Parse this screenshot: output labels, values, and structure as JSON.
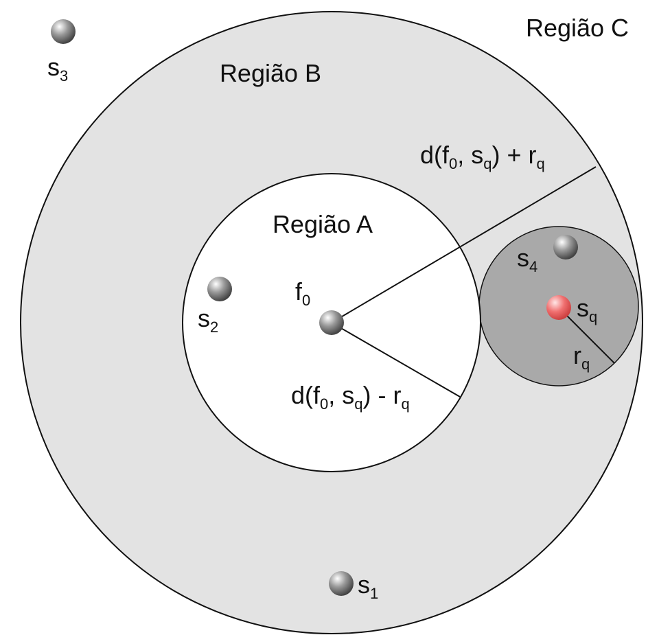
{
  "colors": {
    "background": "#ffffff",
    "region_b_fill": "#e3e3e3",
    "query_circle_fill": "#a9a9a9",
    "outline": "#111111",
    "object_gray": "#8a8a8a",
    "query_object_red": "#e85a5a"
  },
  "regions": {
    "a": "Região A",
    "b": "Região B",
    "c": "Região C"
  },
  "labels": {
    "f0": {
      "base": "f",
      "sub": "0"
    },
    "s1": {
      "base": "s",
      "sub": "1"
    },
    "s2": {
      "base": "s",
      "sub": "2"
    },
    "s3": {
      "base": "s",
      "sub": "3"
    },
    "s4": {
      "base": "s",
      "sub": "4"
    },
    "sq": {
      "base": "s",
      "sub": "q"
    },
    "rq": {
      "base": "r",
      "sub": "q"
    }
  },
  "formulas": {
    "upper": {
      "p1": "d(f",
      "sub1": "0",
      "p2": ", s",
      "sub2": "q",
      "p3": ") + r",
      "sub3": "q"
    },
    "lower": {
      "p1": "d(f",
      "sub1": "0",
      "p2": ", s",
      "sub2": "q",
      "p3": ") - r",
      "sub3": "q"
    }
  }
}
